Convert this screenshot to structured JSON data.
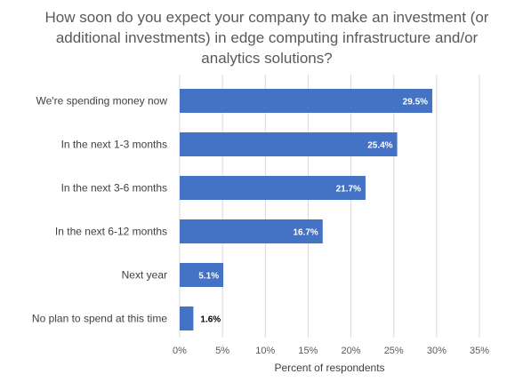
{
  "chart_data": {
    "type": "bar",
    "orientation": "horizontal",
    "title": "How soon do you expect your company to make an investment (or additional investments) in edge computing infrastructure and/or analytics solutions?",
    "xlabel": "Percent of respondents",
    "ylabel": "",
    "categories": [
      "We're spending money now",
      "In the next 1-3 months",
      "In the next 3-6 months",
      "In the next 6-12 months",
      "Next year",
      "No plan to spend at this time"
    ],
    "values": [
      29.5,
      25.4,
      21.7,
      16.7,
      5.1,
      1.6
    ],
    "data_labels": [
      "29.5%",
      "25.4%",
      "21.7%",
      "16.7%",
      "5.1%",
      "1.6%"
    ],
    "xlim": [
      0,
      35
    ],
    "ticks": [
      0,
      5,
      10,
      15,
      20,
      25,
      30,
      35
    ],
    "tick_labels": [
      "0%",
      "5%",
      "10%",
      "15%",
      "20%",
      "25%",
      "30%",
      "35%"
    ],
    "grid": true,
    "legend": "none",
    "colors": {
      "bar": "#4472C4",
      "grid": "#D9D9D9",
      "label_inside": "#FFFFFF",
      "label_outside": "#000000"
    }
  }
}
